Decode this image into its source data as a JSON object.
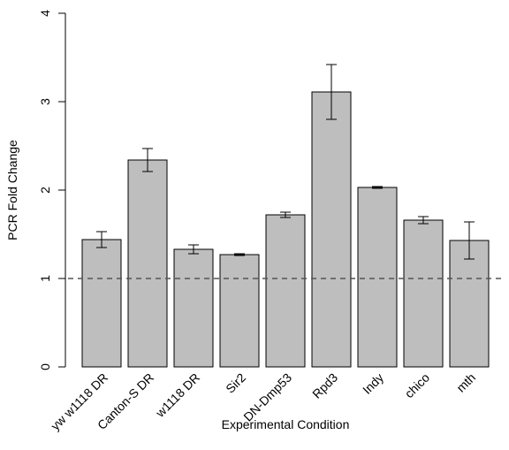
{
  "chart_data": {
    "type": "bar",
    "title": "",
    "xlabel": "Experimental Condition",
    "ylabel": "PCR Fold Change",
    "categories": [
      "yw w1118 DR",
      "Canton-S DR",
      "w1118 DR",
      "Sir2",
      "DN-Dmp53",
      "Rpd3",
      "Indy",
      "chico",
      "mth"
    ],
    "values": [
      1.44,
      2.34,
      1.33,
      1.27,
      1.72,
      3.11,
      2.03,
      1.66,
      1.43
    ],
    "error_low": [
      1.35,
      2.21,
      1.28,
      1.26,
      1.69,
      2.8,
      2.02,
      1.62,
      1.22
    ],
    "error_high": [
      1.53,
      2.47,
      1.38,
      1.28,
      1.75,
      3.42,
      2.04,
      1.7,
      1.64
    ],
    "yticks": [
      "0",
      "1",
      "2",
      "3",
      "4"
    ],
    "ylim": [
      0,
      4
    ],
    "reference_line": 1,
    "grid": false,
    "bar_color": "#bebebe",
    "edge_color": "#000000"
  }
}
